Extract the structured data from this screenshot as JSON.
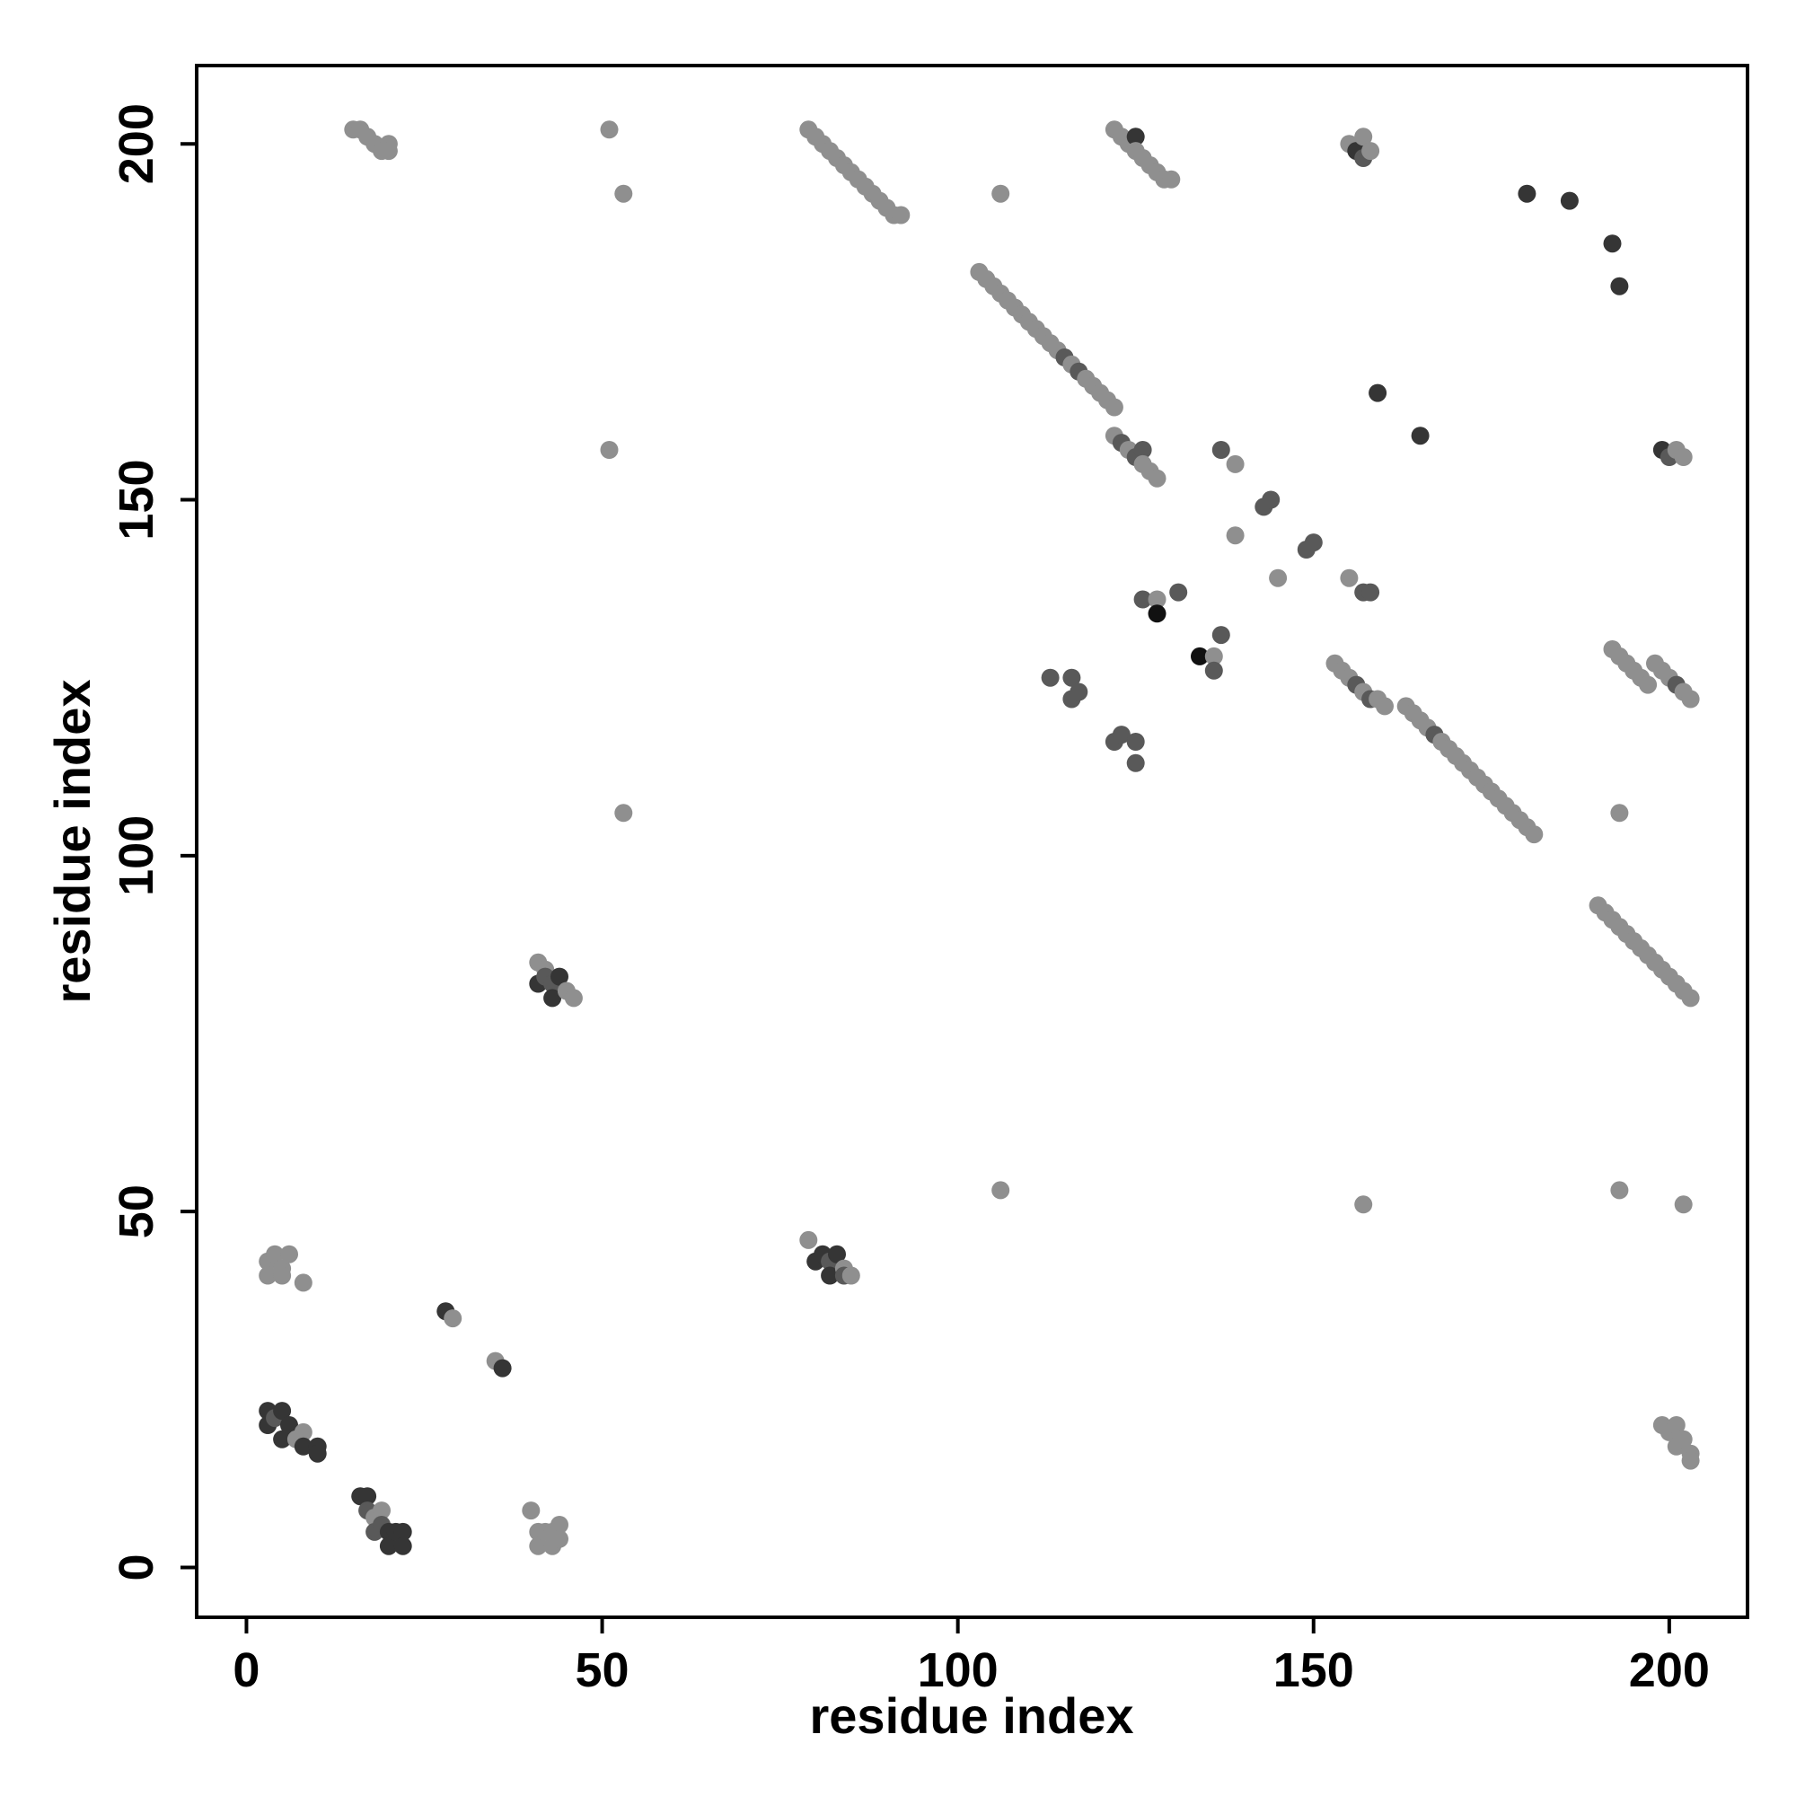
{
  "chart_data": {
    "type": "scatter",
    "xlabel": "residue index",
    "ylabel": "residue index",
    "xlim": [
      -7,
      211
    ],
    "ylim": [
      -7,
      211
    ],
    "x_ticks": [
      "0",
      "50",
      "100",
      "150",
      "200"
    ],
    "y_ticks": [
      "0",
      "50",
      "100",
      "150",
      "200"
    ],
    "grid": false,
    "legend": "none",
    "colors": {
      "light": "#8f8f8f",
      "mid": "#595959",
      "dark": "#353535",
      "black": "#111111"
    },
    "points": [
      [
        15,
        202,
        "light"
      ],
      [
        16,
        202,
        "light"
      ],
      [
        17,
        201,
        "light"
      ],
      [
        18,
        200,
        "light"
      ],
      [
        19,
        199,
        "light"
      ],
      [
        20,
        200,
        "light"
      ],
      [
        20,
        199,
        "light"
      ],
      [
        51,
        202,
        "light"
      ],
      [
        53,
        193,
        "light"
      ],
      [
        79,
        202,
        "light"
      ],
      [
        80,
        201,
        "light"
      ],
      [
        81,
        200,
        "light"
      ],
      [
        82,
        199,
        "light"
      ],
      [
        83,
        198,
        "light"
      ],
      [
        84,
        197,
        "light"
      ],
      [
        85,
        196,
        "light"
      ],
      [
        86,
        195,
        "light"
      ],
      [
        87,
        194,
        "light"
      ],
      [
        88,
        193,
        "light"
      ],
      [
        89,
        192,
        "light"
      ],
      [
        90,
        191,
        "light"
      ],
      [
        91,
        190,
        "light"
      ],
      [
        92,
        190,
        "light"
      ],
      [
        106,
        193,
        "light"
      ],
      [
        122,
        202,
        "light"
      ],
      [
        123,
        201,
        "light"
      ],
      [
        124,
        200,
        "light"
      ],
      [
        125,
        201,
        "dark"
      ],
      [
        125,
        199,
        "light"
      ],
      [
        126,
        198,
        "light"
      ],
      [
        127,
        197,
        "light"
      ],
      [
        128,
        196,
        "light"
      ],
      [
        129,
        195,
        "light"
      ],
      [
        130,
        195,
        "light"
      ],
      [
        155,
        200,
        "light"
      ],
      [
        156,
        199,
        "dark"
      ],
      [
        157,
        201,
        "light"
      ],
      [
        157,
        198,
        "mid"
      ],
      [
        158,
        199,
        "light"
      ],
      [
        180,
        193,
        "dark"
      ],
      [
        186,
        192,
        "dark"
      ],
      [
        192,
        186,
        "dark"
      ],
      [
        193,
        180,
        "dark"
      ],
      [
        103,
        182,
        "light"
      ],
      [
        104,
        181,
        "light"
      ],
      [
        105,
        180,
        "light"
      ],
      [
        106,
        179,
        "light"
      ],
      [
        107,
        178,
        "light"
      ],
      [
        108,
        177,
        "light"
      ],
      [
        109,
        176,
        "light"
      ],
      [
        110,
        175,
        "light"
      ],
      [
        111,
        174,
        "light"
      ],
      [
        112,
        173,
        "light"
      ],
      [
        113,
        172,
        "light"
      ],
      [
        114,
        171,
        "light"
      ],
      [
        115,
        170,
        "mid"
      ],
      [
        116,
        169,
        "light"
      ],
      [
        117,
        168,
        "mid"
      ],
      [
        118,
        167,
        "light"
      ],
      [
        119,
        166,
        "light"
      ],
      [
        120,
        165,
        "light"
      ],
      [
        121,
        164,
        "light"
      ],
      [
        122,
        163,
        "light"
      ],
      [
        122,
        159,
        "light"
      ],
      [
        123,
        158,
        "mid"
      ],
      [
        124,
        157,
        "light"
      ],
      [
        125,
        156,
        "mid"
      ],
      [
        126,
        157,
        "mid"
      ],
      [
        126,
        155,
        "light"
      ],
      [
        127,
        154,
        "light"
      ],
      [
        128,
        153,
        "light"
      ],
      [
        159,
        165,
        "dark"
      ],
      [
        165,
        159,
        "dark"
      ],
      [
        137,
        157,
        "mid"
      ],
      [
        139,
        155,
        "light"
      ],
      [
        51,
        157,
        "light"
      ],
      [
        199,
        157,
        "dark"
      ],
      [
        200,
        156,
        "mid"
      ],
      [
        201,
        157,
        "light"
      ],
      [
        202,
        156,
        "light"
      ],
      [
        143,
        149,
        "mid"
      ],
      [
        144,
        150,
        "mid"
      ],
      [
        139,
        145,
        "light"
      ],
      [
        149,
        143,
        "mid"
      ],
      [
        150,
        144,
        "mid"
      ],
      [
        145,
        139,
        "light"
      ],
      [
        155,
        139,
        "light"
      ],
      [
        157,
        137,
        "mid"
      ],
      [
        158,
        137,
        "mid"
      ],
      [
        126,
        136,
        "mid"
      ],
      [
        128,
        136,
        "light"
      ],
      [
        128,
        134,
        "black"
      ],
      [
        131,
        137,
        "mid"
      ],
      [
        134,
        128,
        "black"
      ],
      [
        136,
        128,
        "light"
      ],
      [
        136,
        126,
        "mid"
      ],
      [
        137,
        131,
        "mid"
      ],
      [
        113,
        125,
        "mid"
      ],
      [
        116,
        125,
        "mid"
      ],
      [
        116,
        122,
        "mid"
      ],
      [
        117,
        123,
        "mid"
      ],
      [
        122,
        116,
        "mid"
      ],
      [
        123,
        117,
        "mid"
      ],
      [
        125,
        116,
        "mid"
      ],
      [
        125,
        113,
        "mid"
      ],
      [
        153,
        127,
        "light"
      ],
      [
        154,
        126,
        "light"
      ],
      [
        155,
        125,
        "light"
      ],
      [
        156,
        124,
        "mid"
      ],
      [
        157,
        123,
        "light"
      ],
      [
        158,
        122,
        "mid"
      ],
      [
        159,
        122,
        "light"
      ],
      [
        160,
        121,
        "light"
      ],
      [
        163,
        121,
        "light"
      ],
      [
        164,
        120,
        "light"
      ],
      [
        165,
        119,
        "light"
      ],
      [
        166,
        118,
        "light"
      ],
      [
        167,
        117,
        "mid"
      ],
      [
        168,
        116,
        "light"
      ],
      [
        169,
        115,
        "light"
      ],
      [
        170,
        114,
        "light"
      ],
      [
        171,
        113,
        "light"
      ],
      [
        172,
        112,
        "light"
      ],
      [
        173,
        111,
        "light"
      ],
      [
        174,
        110,
        "light"
      ],
      [
        175,
        109,
        "light"
      ],
      [
        176,
        108,
        "light"
      ],
      [
        177,
        107,
        "light"
      ],
      [
        178,
        106,
        "light"
      ],
      [
        179,
        105,
        "light"
      ],
      [
        180,
        104,
        "light"
      ],
      [
        181,
        103,
        "light"
      ],
      [
        193,
        106,
        "light"
      ],
      [
        53,
        106,
        "light"
      ],
      [
        192,
        129,
        "light"
      ],
      [
        193,
        128,
        "light"
      ],
      [
        194,
        127,
        "light"
      ],
      [
        195,
        126,
        "light"
      ],
      [
        196,
        125,
        "light"
      ],
      [
        197,
        124,
        "light"
      ],
      [
        198,
        127,
        "light"
      ],
      [
        199,
        126,
        "light"
      ],
      [
        200,
        125,
        "light"
      ],
      [
        201,
        124,
        "mid"
      ],
      [
        202,
        123,
        "light"
      ],
      [
        203,
        122,
        "light"
      ],
      [
        190,
        93,
        "light"
      ],
      [
        191,
        92,
        "light"
      ],
      [
        192,
        91,
        "light"
      ],
      [
        193,
        90,
        "light"
      ],
      [
        194,
        89,
        "light"
      ],
      [
        195,
        88,
        "light"
      ],
      [
        196,
        87,
        "light"
      ],
      [
        197,
        86,
        "light"
      ],
      [
        198,
        85,
        "light"
      ],
      [
        199,
        84,
        "light"
      ],
      [
        200,
        83,
        "light"
      ],
      [
        201,
        82,
        "light"
      ],
      [
        202,
        81,
        "light"
      ],
      [
        203,
        80,
        "light"
      ],
      [
        41,
        85,
        "light"
      ],
      [
        41,
        82,
        "dark"
      ],
      [
        42,
        84,
        "light"
      ],
      [
        42,
        83,
        "mid"
      ],
      [
        43,
        82,
        "mid"
      ],
      [
        43,
        80,
        "dark"
      ],
      [
        44,
        83,
        "dark"
      ],
      [
        45,
        81,
        "light"
      ],
      [
        46,
        80,
        "light"
      ],
      [
        106,
        53,
        "light"
      ],
      [
        157,
        51,
        "light"
      ],
      [
        193,
        53,
        "light"
      ],
      [
        202,
        51,
        "light"
      ],
      [
        3,
        43,
        "light"
      ],
      [
        3,
        41,
        "light"
      ],
      [
        4,
        44,
        "light"
      ],
      [
        5,
        42,
        "light"
      ],
      [
        5,
        41,
        "light"
      ],
      [
        6,
        44,
        "light"
      ],
      [
        8,
        40,
        "light"
      ],
      [
        79,
        46,
        "light"
      ],
      [
        80,
        43,
        "dark"
      ],
      [
        81,
        44,
        "dark"
      ],
      [
        82,
        43,
        "mid"
      ],
      [
        82,
        41,
        "dark"
      ],
      [
        83,
        44,
        "dark"
      ],
      [
        84,
        42,
        "light"
      ],
      [
        84,
        41,
        "mid"
      ],
      [
        85,
        41,
        "light"
      ],
      [
        28,
        36,
        "dark"
      ],
      [
        29,
        35,
        "light"
      ],
      [
        35,
        29,
        "light"
      ],
      [
        36,
        28,
        "dark"
      ],
      [
        3,
        22,
        "dark"
      ],
      [
        3,
        20,
        "dark"
      ],
      [
        4,
        21,
        "mid"
      ],
      [
        5,
        22,
        "dark"
      ],
      [
        5,
        18,
        "dark"
      ],
      [
        6,
        20,
        "dark"
      ],
      [
        7,
        18,
        "light"
      ],
      [
        8,
        19,
        "light"
      ],
      [
        8,
        17,
        "dark"
      ],
      [
        10,
        17,
        "dark"
      ],
      [
        10,
        16,
        "dark"
      ],
      [
        199,
        20,
        "light"
      ],
      [
        200,
        19,
        "light"
      ],
      [
        201,
        20,
        "light"
      ],
      [
        201,
        17,
        "light"
      ],
      [
        202,
        18,
        "light"
      ],
      [
        203,
        16,
        "light"
      ],
      [
        203,
        15,
        "light"
      ],
      [
        16,
        10,
        "dark"
      ],
      [
        17,
        10,
        "dark"
      ],
      [
        17,
        8,
        "mid"
      ],
      [
        18,
        7,
        "light"
      ],
      [
        18,
        5,
        "mid"
      ],
      [
        19,
        8,
        "light"
      ],
      [
        19,
        6,
        "mid"
      ],
      [
        20,
        5,
        "dark"
      ],
      [
        20,
        3,
        "dark"
      ],
      [
        21,
        5,
        "dark"
      ],
      [
        22,
        5,
        "dark"
      ],
      [
        22,
        3,
        "dark"
      ],
      [
        40,
        8,
        "light"
      ],
      [
        41,
        5,
        "light"
      ],
      [
        41,
        3,
        "light"
      ],
      [
        42,
        5,
        "light"
      ],
      [
        43,
        5,
        "light"
      ],
      [
        43,
        3,
        "light"
      ],
      [
        44,
        6,
        "light"
      ],
      [
        44,
        4,
        "light"
      ]
    ]
  }
}
